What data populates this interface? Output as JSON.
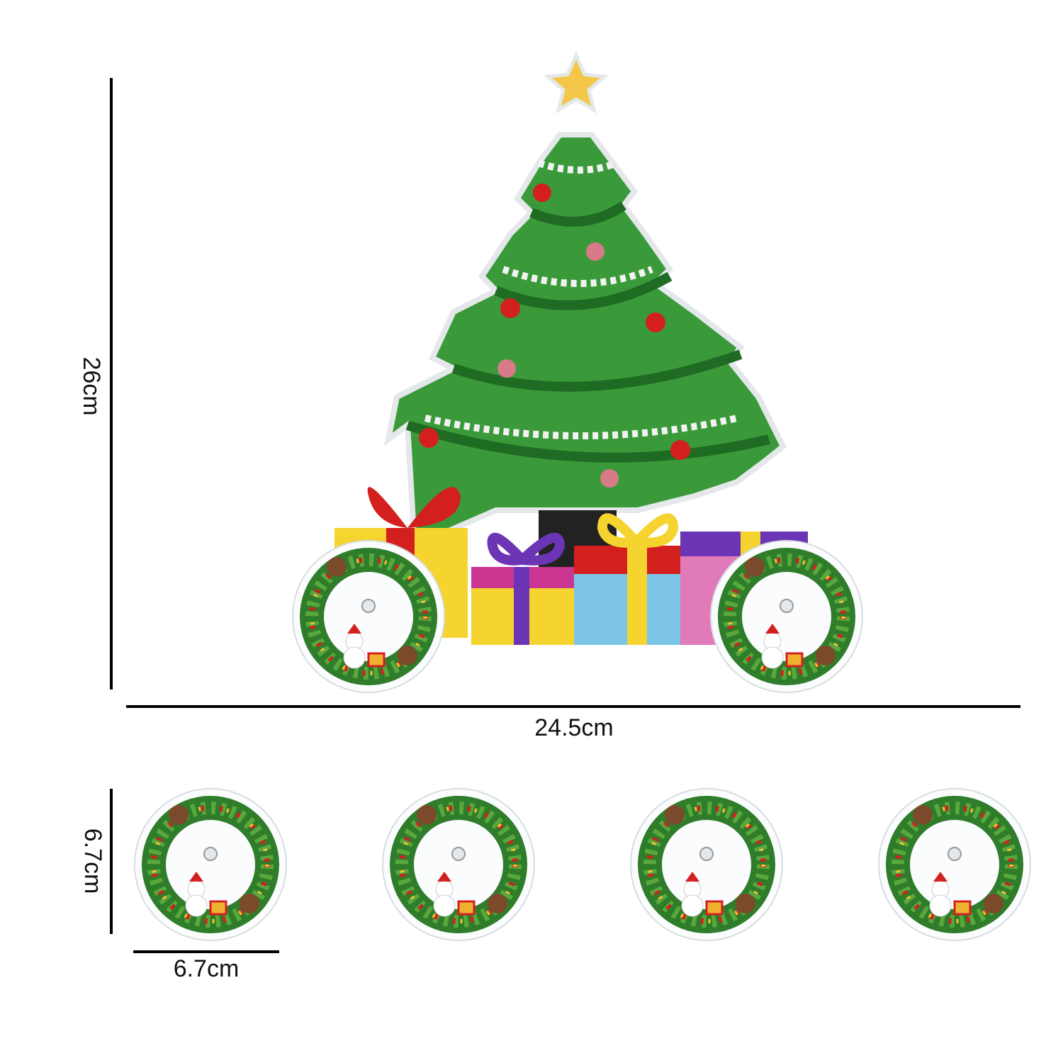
{
  "dimensions": {
    "height": "26cm",
    "width": "24.5cm",
    "coaster_height": "6.7cm",
    "coaster_width": "6.7cm"
  }
}
